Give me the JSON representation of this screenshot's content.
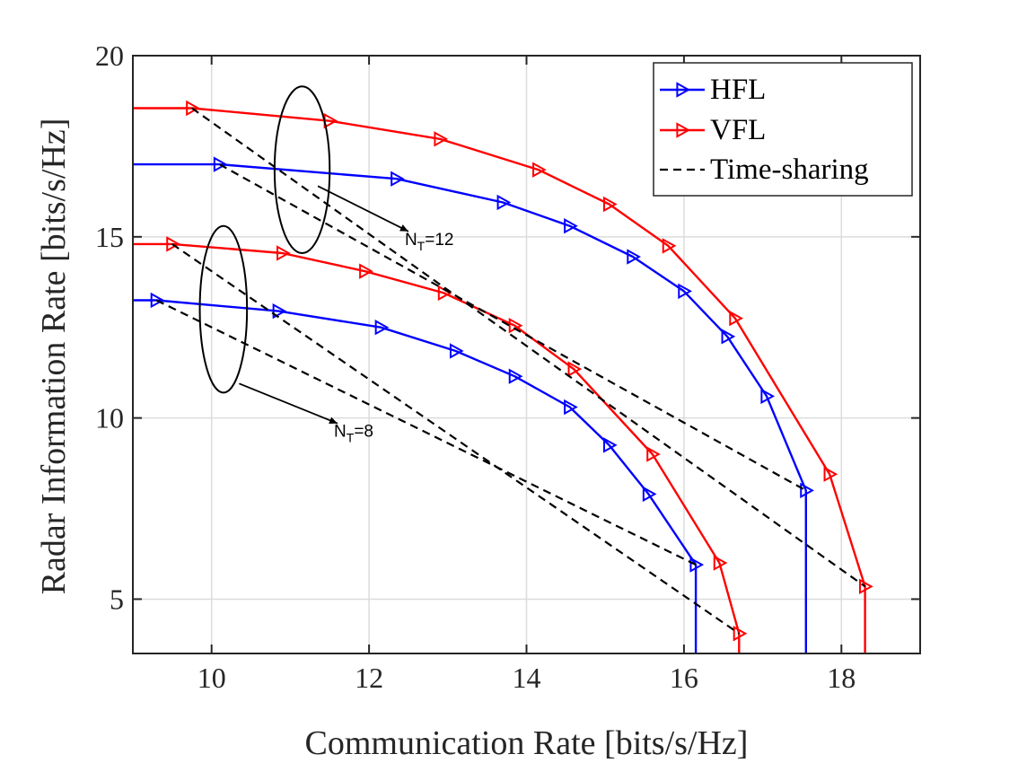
{
  "chart_data": {
    "type": "line",
    "title": "",
    "xlabel": "Communication Rate [bits/s/Hz]",
    "ylabel": "Radar Information Rate [bits/s/Hz]",
    "xlim": [
      9,
      19
    ],
    "ylim": [
      3.5,
      20
    ],
    "xticks": [
      10,
      12,
      14,
      16,
      18
    ],
    "yticks": [
      5,
      10,
      15,
      20
    ],
    "grid": true,
    "legend_position": "top-right",
    "colors": {
      "HFL": "#0000ff",
      "VFL": "#ff0000",
      "Time-sharing": "#000000",
      "axis": "#262626",
      "grid": "#dcdcdc"
    },
    "series": [
      {
        "name": "HFL",
        "group": "N_T=12",
        "style": "solid-triangle",
        "x": [
          9.0,
          10.1,
          12.35,
          13.7,
          14.55,
          15.35,
          16.0,
          16.55,
          17.05,
          17.55,
          17.55
        ],
        "y": [
          17.0,
          17.0,
          16.6,
          15.95,
          15.3,
          14.45,
          13.5,
          12.25,
          10.6,
          8.0,
          3.5
        ]
      },
      {
        "name": "VFL",
        "group": "N_T=12",
        "style": "solid-triangle",
        "x": [
          9.0,
          9.75,
          11.5,
          12.9,
          14.15,
          15.05,
          15.8,
          16.65,
          17.85,
          18.3,
          18.3
        ],
        "y": [
          18.55,
          18.55,
          18.2,
          17.7,
          16.85,
          15.9,
          14.75,
          12.75,
          8.45,
          5.35,
          3.5
        ]
      },
      {
        "name": "HFL",
        "group": "N_T=8",
        "style": "solid-triangle",
        "x": [
          9.0,
          9.3,
          10.85,
          12.15,
          13.1,
          13.85,
          14.55,
          15.05,
          15.55,
          16.15,
          16.15
        ],
        "y": [
          13.25,
          13.25,
          12.95,
          12.5,
          11.85,
          11.15,
          10.3,
          9.25,
          7.9,
          5.95,
          3.5
        ]
      },
      {
        "name": "VFL",
        "group": "N_T=8",
        "style": "solid-triangle",
        "x": [
          9.0,
          9.5,
          10.9,
          11.95,
          12.95,
          13.85,
          14.6,
          15.6,
          16.45,
          16.7,
          16.7
        ],
        "y": [
          14.8,
          14.8,
          14.55,
          14.05,
          13.45,
          12.55,
          11.35,
          9.0,
          6.0,
          4.05,
          3.5
        ]
      },
      {
        "name": "Time-sharing",
        "group": "N_T=12 VFL",
        "style": "dashed",
        "x": [
          9.75,
          18.3
        ],
        "y": [
          18.55,
          5.35
        ]
      },
      {
        "name": "Time-sharing",
        "group": "N_T=12 HFL",
        "style": "dashed",
        "x": [
          10.1,
          17.55
        ],
        "y": [
          17.0,
          8.0
        ]
      },
      {
        "name": "Time-sharing",
        "group": "N_T=8 VFL",
        "style": "dashed",
        "x": [
          9.5,
          16.7
        ],
        "y": [
          14.8,
          4.05
        ]
      },
      {
        "name": "Time-sharing",
        "group": "N_T=8 HFL",
        "style": "dashed",
        "x": [
          9.3,
          16.15
        ],
        "y": [
          13.25,
          5.95
        ]
      }
    ],
    "legend": [
      "HFL",
      "VFL",
      "Time-sharing"
    ],
    "annotations": [
      {
        "label": "N",
        "sub": "T",
        "rest": "=12",
        "ellipse_center": [
          11.15,
          16.85
        ],
        "ellipse_rx": 0.35,
        "ellipse_ry": 2.3,
        "arrow_from": [
          11.35,
          16.4
        ],
        "arrow_to": [
          12.5,
          15.15
        ]
      },
      {
        "label": "N",
        "sub": "T",
        "rest": "=8",
        "ellipse_center": [
          10.15,
          13.0
        ],
        "ellipse_rx": 0.3,
        "ellipse_ry": 2.3,
        "arrow_from": [
          10.35,
          10.95
        ],
        "arrow_to": [
          11.6,
          9.85
        ]
      }
    ]
  }
}
